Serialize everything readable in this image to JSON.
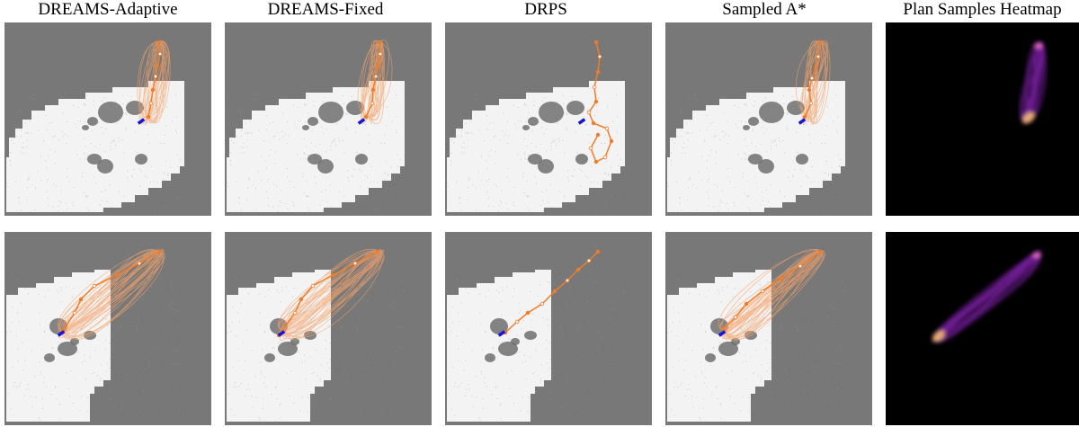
{
  "columns": [
    {
      "title": "DREAMS-Adaptive"
    },
    {
      "title": "DREAMS-Fixed"
    },
    {
      "title": "DRPS"
    },
    {
      "title": "Sampled A*"
    },
    {
      "title": "Plan Samples Heatmap"
    }
  ],
  "colors": {
    "unexplored": "#787878",
    "map_free": "#f3f3f3",
    "obstacle": "#6e6e6e",
    "path": "#f07c2a",
    "samples": "#f4a36c",
    "robot": "#1616d8",
    "heatmap_bg": "#000000",
    "heatmap_mid": "#7a1fa2",
    "heatmap_hot": "#ffc36e"
  },
  "rows": [
    "top",
    "bottom"
  ]
}
